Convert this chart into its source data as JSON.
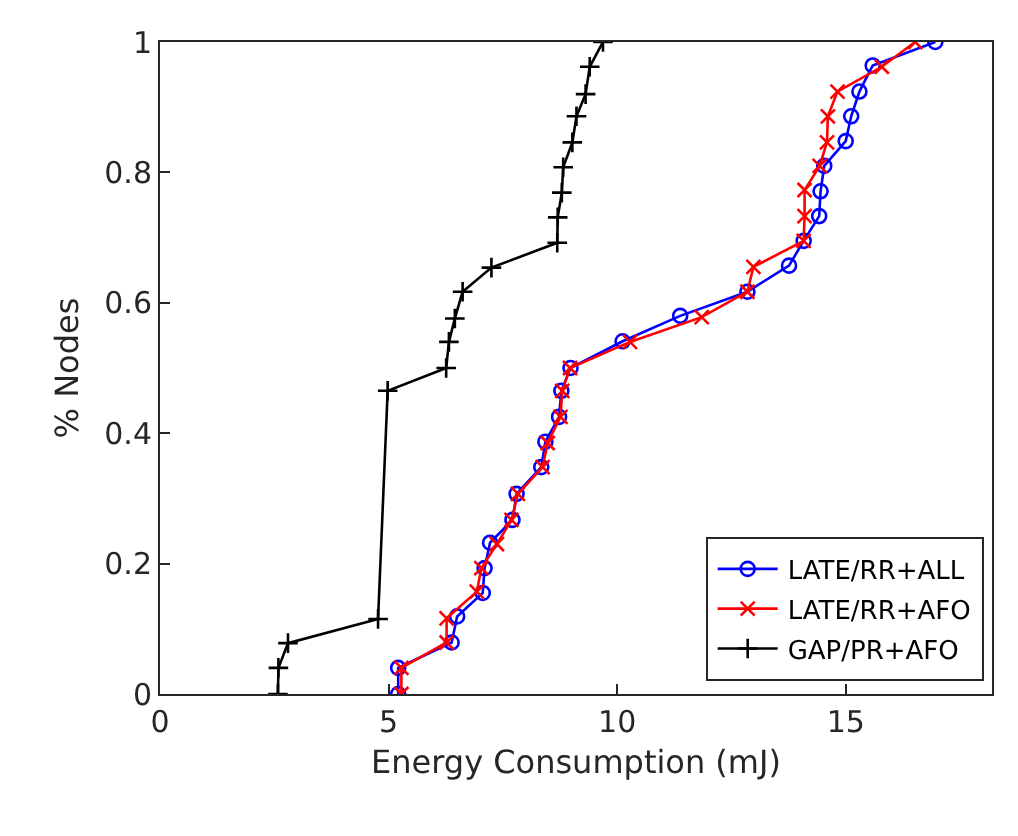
{
  "chart_data": {
    "type": "line",
    "xlabel": "Energy Consumption (mJ)",
    "ylabel": "% Nodes",
    "xlim": [
      0,
      18.2
    ],
    "xticks": [
      0,
      5,
      10,
      15
    ],
    "ylim": [
      0,
      1
    ],
    "yticks": [
      0,
      0.2,
      0.4,
      0.6,
      0.8,
      1
    ],
    "legend": "bottom right",
    "line_style": "solid",
    "series": [
      {
        "name": "LATE/RR+ALL",
        "color": "#0000ff",
        "marker": "circle",
        "x": [
          5.21,
          5.21,
          6.38,
          6.5,
          7.06,
          7.1,
          7.22,
          7.71,
          7.8,
          8.34,
          8.43,
          8.73,
          8.78,
          8.98,
          10.12,
          11.38,
          12.85,
          13.76,
          14.08,
          14.42,
          14.45,
          14.53,
          15.0,
          15.12,
          15.3,
          15.59,
          16.96
        ],
        "values": [
          0,
          0.04,
          0.079,
          0.119,
          0.155,
          0.193,
          0.232,
          0.267,
          0.307,
          0.348,
          0.387,
          0.425,
          0.465,
          0.5,
          0.541,
          0.58,
          0.617,
          0.657,
          0.695,
          0.733,
          0.771,
          0.81,
          0.848,
          0.886,
          0.924,
          0.964,
          1.0
        ]
      },
      {
        "name": "LATE/RR+AFO",
        "color": "#ff0000",
        "marker": "x",
        "x": [
          5.28,
          5.28,
          6.27,
          6.27,
          6.93,
          7.03,
          7.37,
          7.69,
          7.83,
          8.37,
          8.48,
          8.76,
          8.8,
          8.97,
          10.28,
          11.85,
          12.85,
          12.98,
          14.08,
          14.1,
          14.1,
          14.43,
          14.59,
          14.61,
          14.82,
          15.79,
          16.52
        ],
        "values": [
          0,
          0.04,
          0.079,
          0.116,
          0.157,
          0.193,
          0.23,
          0.267,
          0.307,
          0.348,
          0.385,
          0.425,
          0.465,
          0.5,
          0.54,
          0.578,
          0.617,
          0.655,
          0.695,
          0.733,
          0.773,
          0.81,
          0.846,
          0.886,
          0.924,
          0.962,
          1.0
        ]
      },
      {
        "name": "GAP/PR+AFO",
        "color": "#000000",
        "marker": "cross",
        "x": [
          2.58,
          2.59,
          2.8,
          4.77,
          4.98,
          6.26,
          6.32,
          6.45,
          6.62,
          7.25,
          8.69,
          8.7,
          8.79,
          8.82,
          9.02,
          9.11,
          9.31,
          9.4,
          9.69
        ],
        "values": [
          0,
          0.04,
          0.078,
          0.115,
          0.465,
          0.5,
          0.54,
          0.576,
          0.617,
          0.654,
          0.692,
          0.731,
          0.769,
          0.808,
          0.846,
          0.886,
          0.92,
          0.962,
          1.0
        ]
      }
    ]
  }
}
